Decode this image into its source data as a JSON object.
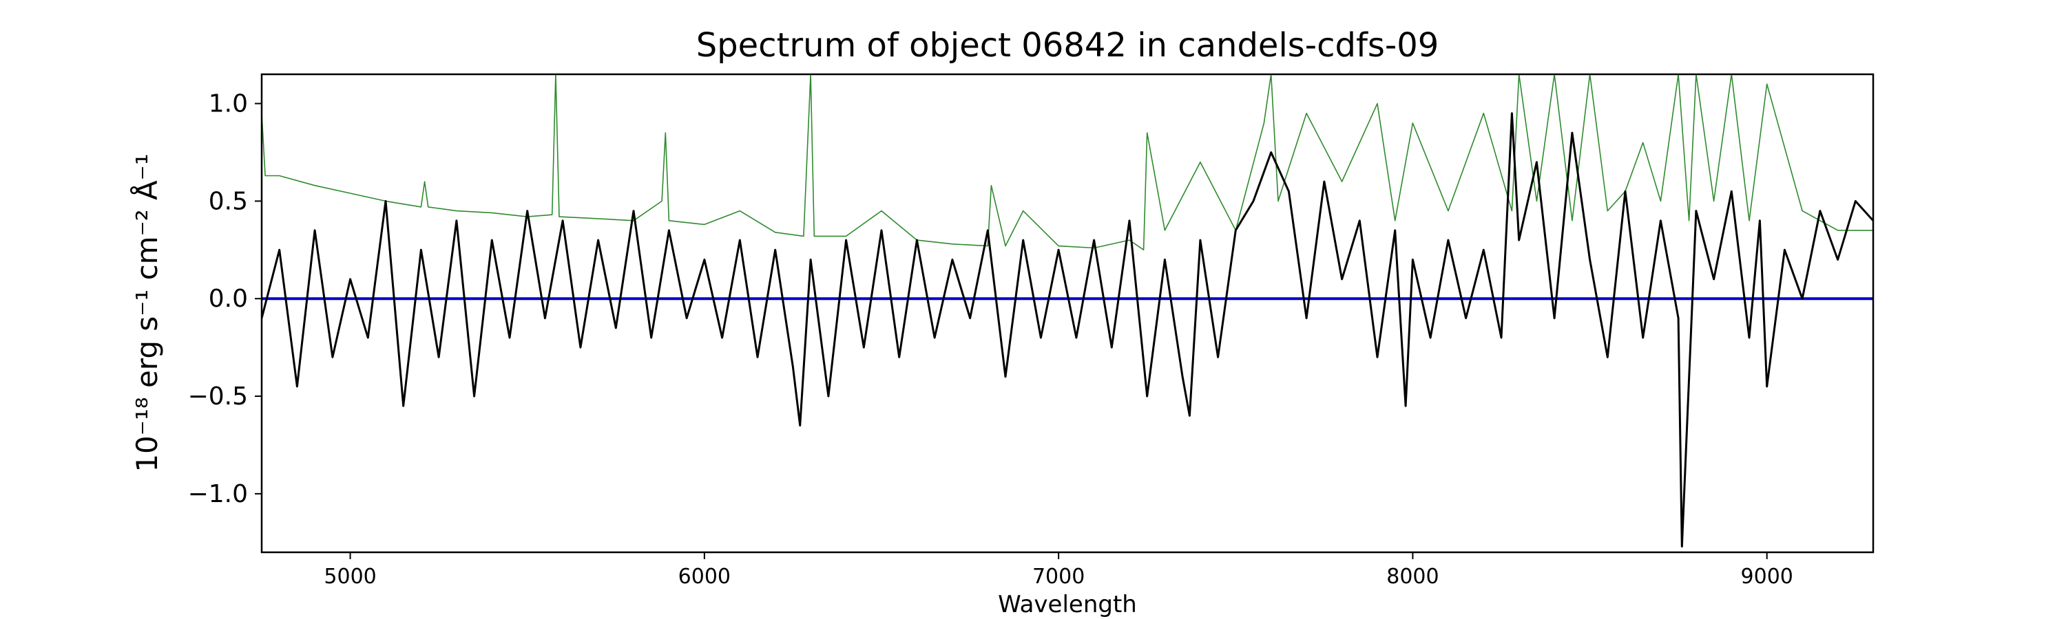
{
  "chart_data": {
    "type": "line",
    "title": "Spectrum of object 06842 in candels-cdfs-09",
    "xlabel": "Wavelength",
    "ylabel": "10⁻¹⁸ erg s⁻¹ cm⁻² Å⁻¹",
    "xlim": [
      4750,
      9300
    ],
    "ylim": [
      -1.3,
      1.15
    ],
    "xticks": [
      5000,
      6000,
      7000,
      8000,
      9000
    ],
    "xtick_labels": [
      "5000",
      "6000",
      "7000",
      "8000",
      "9000"
    ],
    "yticks": [
      -1.0,
      -0.5,
      0.0,
      0.5,
      1.0
    ],
    "ytick_labels": [
      "−1.0",
      "−0.5",
      "0.0",
      "0.5",
      "1.0"
    ],
    "grid": false,
    "colors": {
      "flux": "#000000",
      "error": "#2e8b2e",
      "zero": "#0000cc"
    },
    "series": [
      {
        "role": "flux",
        "x": [
          4750,
          4800,
          4850,
          4900,
          4950,
          5000,
          5050,
          5100,
          5150,
          5200,
          5250,
          5300,
          5350,
          5400,
          5450,
          5500,
          5550,
          5600,
          5650,
          5700,
          5750,
          5800,
          5850,
          5900,
          5950,
          6000,
          6050,
          6100,
          6150,
          6200,
          6250,
          6270,
          6300,
          6350,
          6400,
          6450,
          6500,
          6550,
          6600,
          6650,
          6700,
          6750,
          6800,
          6850,
          6900,
          6950,
          7000,
          7050,
          7100,
          7150,
          7200,
          7250,
          7300,
          7350,
          7370,
          7400,
          7450,
          7500,
          7550,
          7600,
          7650,
          7700,
          7750,
          7800,
          7850,
          7900,
          7950,
          7980,
          8000,
          8050,
          8100,
          8150,
          8200,
          8250,
          8280,
          8300,
          8350,
          8400,
          8450,
          8500,
          8550,
          8600,
          8650,
          8700,
          8750,
          8760,
          8800,
          8850,
          8900,
          8950,
          8980,
          9000,
          9050,
          9100,
          9150,
          9200,
          9250,
          9300
        ],
        "y": [
          -0.1,
          0.25,
          -0.45,
          0.35,
          -0.3,
          0.1,
          -0.2,
          0.5,
          -0.55,
          0.25,
          -0.3,
          0.4,
          -0.5,
          0.3,
          -0.2,
          0.45,
          -0.1,
          0.4,
          -0.25,
          0.3,
          -0.15,
          0.45,
          -0.2,
          0.35,
          -0.1,
          0.2,
          -0.2,
          0.3,
          -0.3,
          0.25,
          -0.35,
          -0.65,
          0.2,
          -0.5,
          0.3,
          -0.25,
          0.35,
          -0.3,
          0.3,
          -0.2,
          0.2,
          -0.1,
          0.35,
          -0.4,
          0.3,
          -0.2,
          0.25,
          -0.2,
          0.3,
          -0.25,
          0.4,
          -0.5,
          0.2,
          -0.4,
          -0.6,
          0.3,
          -0.3,
          0.35,
          0.5,
          0.75,
          0.55,
          -0.1,
          0.6,
          0.1,
          0.4,
          -0.3,
          0.35,
          -0.55,
          0.2,
          -0.2,
          0.3,
          -0.1,
          0.25,
          -0.2,
          0.95,
          0.3,
          0.7,
          -0.1,
          0.85,
          0.2,
          -0.3,
          0.55,
          -0.2,
          0.4,
          -0.1,
          -1.27,
          0.45,
          0.1,
          0.55,
          -0.2,
          0.4,
          -0.45,
          0.25,
          0.0,
          0.45,
          0.2,
          0.5,
          0.4
        ]
      },
      {
        "role": "error",
        "x": [
          4750,
          4760,
          4800,
          4900,
          5000,
          5100,
          5200,
          5210,
          5220,
          5300,
          5400,
          5500,
          5570,
          5580,
          5590,
          5700,
          5800,
          5880,
          5890,
          5900,
          6000,
          6100,
          6200,
          6280,
          6300,
          6310,
          6400,
          6500,
          6600,
          6700,
          6800,
          6810,
          6850,
          6900,
          7000,
          7100,
          7200,
          7240,
          7250,
          7300,
          7400,
          7500,
          7580,
          7600,
          7620,
          7700,
          7800,
          7900,
          7950,
          8000,
          8100,
          8200,
          8280,
          8300,
          8350,
          8400,
          8450,
          8500,
          8550,
          8600,
          8650,
          8700,
          8750,
          8780,
          8800,
          8850,
          8900,
          8950,
          9000,
          9100,
          9200,
          9300
        ],
        "y": [
          0.95,
          0.63,
          0.63,
          0.58,
          0.54,
          0.5,
          0.47,
          0.6,
          0.47,
          0.45,
          0.44,
          0.42,
          0.43,
          1.15,
          0.42,
          0.41,
          0.4,
          0.5,
          0.85,
          0.4,
          0.38,
          0.45,
          0.34,
          0.32,
          1.15,
          0.32,
          0.32,
          0.45,
          0.3,
          0.28,
          0.27,
          0.58,
          0.27,
          0.45,
          0.27,
          0.26,
          0.3,
          0.25,
          0.85,
          0.35,
          0.7,
          0.35,
          0.9,
          1.15,
          0.5,
          0.95,
          0.6,
          1.0,
          0.4,
          0.9,
          0.45,
          0.95,
          0.45,
          1.15,
          0.5,
          1.15,
          0.4,
          1.15,
          0.45,
          0.55,
          0.8,
          0.5,
          1.15,
          0.4,
          1.15,
          0.5,
          1.15,
          0.4,
          1.1,
          0.45,
          0.35,
          0.35
        ]
      },
      {
        "role": "zero",
        "x": [
          4750,
          9300
        ],
        "y": [
          0.0,
          0.0
        ]
      }
    ]
  }
}
